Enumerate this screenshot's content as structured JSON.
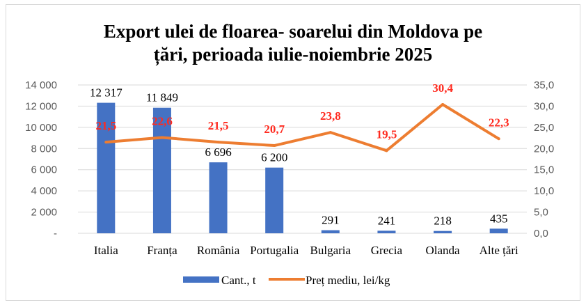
{
  "chart_data": {
    "type": "bar+line",
    "title": [
      "Export ulei de floarea- soarelui din Moldova pe",
      "țări, perioada iulie-noiembrie 2025"
    ],
    "categories": [
      "Italia",
      "Franța",
      "România",
      "Portugalia",
      "Bulgaria",
      "Grecia",
      "Olanda",
      "Alte țări"
    ],
    "series": [
      {
        "name": "Cant., t",
        "type": "bar",
        "axis": "left",
        "color": "#4472c4",
        "values": [
          12317,
          11849,
          6696,
          6200,
          291,
          241,
          218,
          435
        ],
        "labels": [
          "12 317",
          "11 849",
          "6 696",
          "6 200",
          "291",
          "241",
          "218",
          "435"
        ]
      },
      {
        "name": "Preț mediu, lei/kg",
        "type": "line",
        "axis": "right",
        "color": "#ed7d31",
        "values": [
          21.5,
          22.6,
          21.5,
          20.7,
          23.8,
          19.5,
          30.4,
          22.3
        ],
        "labels": [
          "21,5",
          "22,6",
          "21,5",
          "20,7",
          "23,8",
          "19,5",
          "30,4",
          "22,3"
        ]
      }
    ],
    "y_left": {
      "range": [
        0,
        14000
      ],
      "ticks": [
        "-",
        "2 000",
        "4 000",
        "6 000",
        "8 000",
        "10 000",
        "12 000",
        "14 000"
      ]
    },
    "y_right": {
      "range": [
        0,
        35
      ],
      "ticks": [
        "0,0",
        "5,0",
        "10,0",
        "15,0",
        "20,0",
        "25,0",
        "30,0",
        "35,0"
      ]
    },
    "grid": true,
    "legend": "bottom",
    "label_color_line": "#ff2a1f"
  }
}
